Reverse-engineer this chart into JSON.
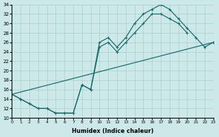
{
  "xlabel": "Humidex (Indice chaleur)",
  "line_color": "#1a6b6b",
  "bg_color": "#cce8e8",
  "grid_color": "#aacccc",
  "xlim": [
    0,
    23
  ],
  "ylim": [
    10,
    34
  ],
  "yticks": [
    10,
    12,
    14,
    16,
    18,
    20,
    22,
    24,
    26,
    28,
    30,
    32,
    34
  ],
  "xticks": [
    0,
    1,
    2,
    3,
    4,
    5,
    6,
    7,
    8,
    9,
    10,
    11,
    12,
    13,
    14,
    15,
    16,
    17,
    18,
    19,
    20,
    21,
    22,
    23
  ],
  "curve1_x": [
    0,
    1,
    2,
    3,
    4,
    5,
    6,
    7,
    8,
    9,
    10,
    11,
    12,
    13,
    14,
    15,
    16,
    17,
    18,
    19,
    20,
    21,
    22,
    23
  ],
  "curve1_y": [
    15,
    14,
    13,
    12,
    12,
    11,
    11,
    11,
    17,
    16,
    26,
    27,
    25,
    27,
    30,
    32,
    33,
    34,
    33,
    31,
    29,
    27,
    25,
    26
  ],
  "curve2_x": [
    0,
    1,
    2,
    3,
    4,
    5,
    6,
    7,
    8,
    9,
    10,
    11,
    12,
    13,
    14,
    15,
    16,
    17,
    18,
    19,
    20,
    21,
    22,
    23
  ],
  "curve2_y": [
    15,
    14,
    13,
    12,
    12,
    11,
    11,
    11,
    17,
    16,
    26,
    27,
    25,
    27,
    30,
    32,
    32,
    32,
    31,
    30,
    29,
    27,
    25,
    26
  ],
  "line3_x": [
    0,
    23
  ],
  "line3_y": [
    15,
    26
  ]
}
